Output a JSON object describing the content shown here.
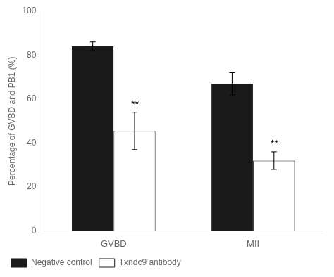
{
  "chart_data": {
    "type": "bar",
    "categories": [
      "GVBD",
      "MII"
    ],
    "ylabel": "Percentage of GVBD and PB1 (%)",
    "series": [
      {
        "name": "Negative control",
        "color": "#1a1a1a",
        "values": [
          84.0,
          67.0
        ],
        "errors": [
          2.0,
          5.0
        ]
      },
      {
        "name": "Txndc9 antibody",
        "color": "#ffffff",
        "values": [
          45.5,
          32.0
        ],
        "errors": [
          8.5,
          4.0
        ]
      }
    ],
    "annotations": [
      {
        "text": "**",
        "category": "GVBD",
        "series": "Txndc9 antibody"
      },
      {
        "text": "**",
        "category": "MII",
        "series": "Txndc9 antibody"
      }
    ],
    "ylim": [
      0,
      100
    ],
    "yticks": [
      0,
      20,
      40,
      60,
      80,
      100
    ],
    "grid": false,
    "legend": "bottom"
  }
}
